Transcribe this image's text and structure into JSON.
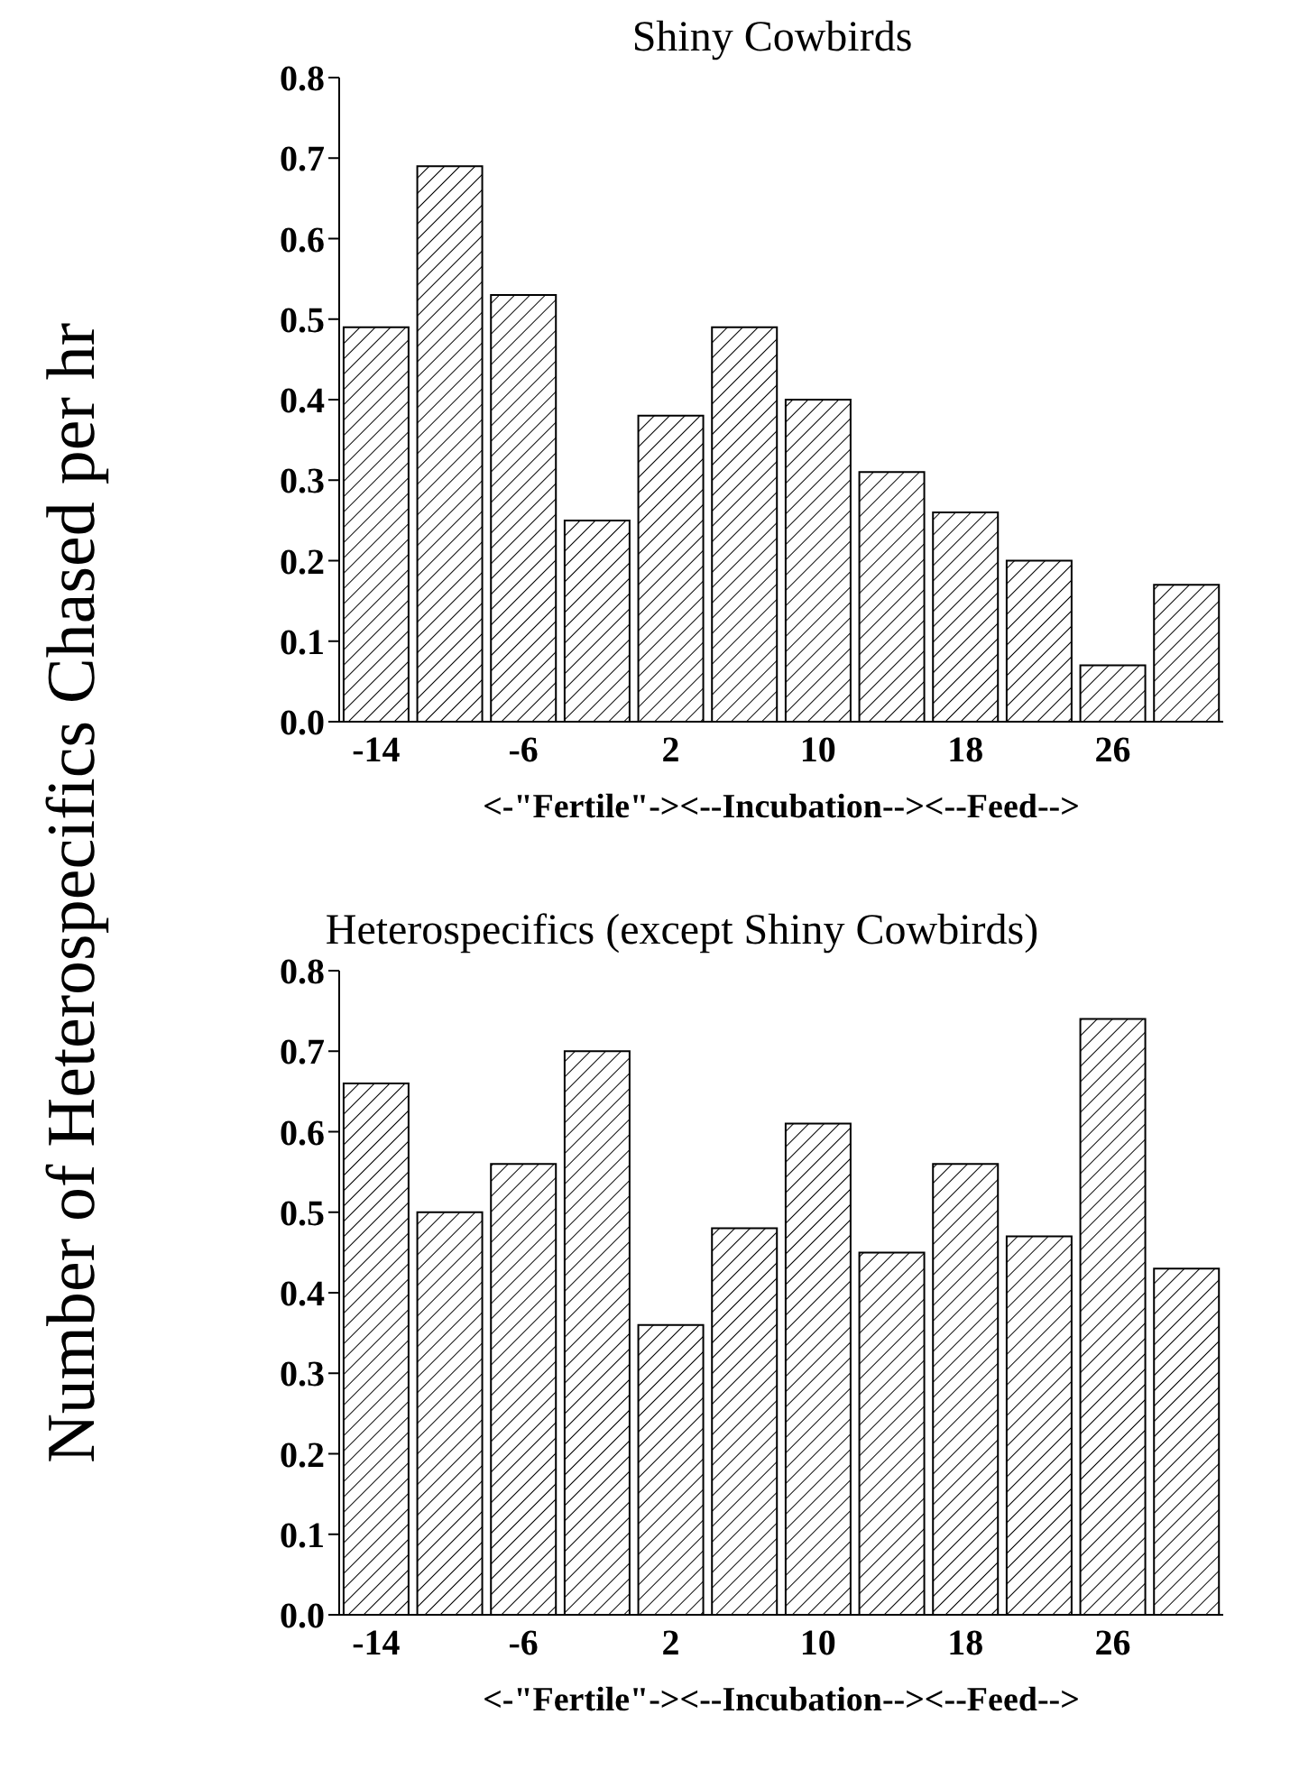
{
  "chart_data": [
    {
      "type": "bar",
      "title": "Shiny Cowbirds",
      "ylabel": "Number of Heterospecifics Chased per hr",
      "xlabel": "<-\"Fertile\"-><--Incubation--><--Feed-->",
      "categories": [
        "-14",
        null,
        "-6",
        null,
        "2",
        null,
        "10",
        null,
        "18",
        null,
        "26",
        null
      ],
      "series": [
        {
          "color": "#000000",
          "values": [
            0.49,
            0.69,
            0.53,
            0.25,
            0.38,
            0.49,
            0.4,
            0.31,
            0.26,
            0.2,
            0.07,
            0.17
          ]
        }
      ],
      "ylim": [
        0,
        0.8
      ],
      "yticks": [
        {
          "value": 0,
          "label": "0.0"
        },
        {
          "value": 0.1,
          "label": "0.1"
        },
        {
          "value": 0.2,
          "label": "0.2"
        },
        {
          "value": 0.3,
          "label": "0.3"
        },
        {
          "value": 0.4,
          "label": "0.4"
        },
        {
          "value": 0.5,
          "label": "0.5"
        },
        {
          "value": 0.6,
          "label": "0.6"
        },
        {
          "value": 0.7,
          "label": "0.7"
        },
        {
          "value": 0.8,
          "label": "0.8"
        }
      ],
      "grid": false,
      "legend": false
    },
    {
      "type": "bar",
      "title": "Heterospecifics (except Shiny Cowbirds)",
      "xlabel": "<-\"Fertile\"-><--Incubation--><--Feed-->",
      "categories": [
        "-14",
        null,
        "-6",
        null,
        "2",
        null,
        "10",
        null,
        "18",
        null,
        "26",
        null
      ],
      "series": [
        {
          "color": "#000000",
          "values": [
            0.66,
            0.5,
            0.56,
            0.7,
            0.36,
            0.48,
            0.61,
            0.45,
            0.56,
            0.47,
            0.74,
            0.43
          ]
        }
      ],
      "ylim": [
        0,
        0.8
      ],
      "yticks": [
        {
          "value": 0,
          "label": "0.0"
        },
        {
          "value": 0.1,
          "label": "0.1"
        },
        {
          "value": 0.2,
          "label": "0.2"
        },
        {
          "value": 0.3,
          "label": "0.3"
        },
        {
          "value": 0.4,
          "label": "0.4"
        },
        {
          "value": 0.5,
          "label": "0.5"
        },
        {
          "value": 0.6,
          "label": "0.6"
        },
        {
          "value": 0.7,
          "label": "0.7"
        },
        {
          "value": 0.8,
          "label": "0.8"
        }
      ],
      "grid": false,
      "legend": false
    }
  ]
}
